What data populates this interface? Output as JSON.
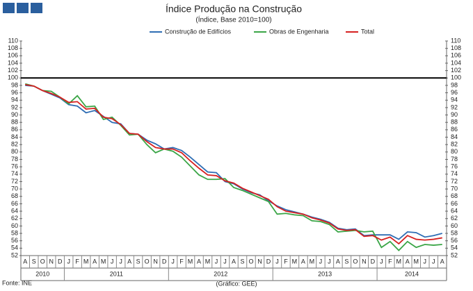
{
  "chart_data": {
    "type": "line",
    "title": "Índice Produção na Construção",
    "subtitle": "(Índice, Base 2010=100)",
    "categories": [
      "A",
      "S",
      "O",
      "N",
      "D",
      "J",
      "F",
      "M",
      "A",
      "M",
      "J",
      "J",
      "A",
      "S",
      "O",
      "N",
      "D",
      "J",
      "F",
      "M",
      "A",
      "M",
      "J",
      "J",
      "A",
      "S",
      "O",
      "N",
      "D",
      "J",
      "F",
      "M",
      "A",
      "M",
      "J",
      "J",
      "A",
      "S",
      "O",
      "N",
      "D",
      "J",
      "F",
      "M",
      "A",
      "M",
      "J",
      "J",
      "A"
    ],
    "years": [
      "2010",
      "2011",
      "2012",
      "2013",
      "2014"
    ],
    "series": [
      {
        "name": "Construção de Edifícios",
        "color": "#2e6db4",
        "values": [
          98,
          97.8,
          96.6,
          95.6,
          94.6,
          92.8,
          92.4,
          90.6,
          91.2,
          89.6,
          88,
          87.6,
          85,
          84.8,
          83.2,
          82.2,
          80.8,
          81.2,
          80.4,
          78.6,
          76.6,
          74.6,
          74.4,
          72,
          71.4,
          70,
          69,
          68.4,
          66.8,
          65.4,
          64.4,
          63.8,
          63.2,
          62.4,
          61.8,
          61,
          59.4,
          59,
          59.2,
          57.4,
          57.6,
          57.6,
          57.6,
          56.4,
          58.4,
          58.2,
          57,
          57.4,
          58
        ]
      },
      {
        "name": "Obras de Engenharia",
        "color": "#3aa546",
        "values": [
          98.4,
          97.8,
          96.6,
          96.4,
          94.8,
          93,
          95.2,
          92.2,
          92.4,
          88.8,
          89.4,
          87.2,
          84.6,
          84.8,
          82,
          79.8,
          80.8,
          80.2,
          78.6,
          76.2,
          73.8,
          72.6,
          72.6,
          72.8,
          70.4,
          69.6,
          68.6,
          67.6,
          66.6,
          63.2,
          63.4,
          63,
          62.8,
          61.4,
          61.2,
          60.4,
          58.4,
          58.6,
          58.8,
          58.4,
          58.6,
          54.2,
          55.8,
          53.4,
          55.8,
          54.2,
          55,
          54.8,
          55
        ]
      },
      {
        "name": "Total",
        "color": "#d62020",
        "values": [
          98.2,
          97.8,
          96.6,
          95.8,
          94.8,
          93.4,
          93.6,
          91.6,
          91.8,
          89.4,
          89,
          87.4,
          85,
          84.8,
          82.8,
          81.2,
          80.8,
          80.8,
          79.8,
          77.6,
          75.6,
          73.8,
          73.6,
          72.2,
          71.6,
          70.2,
          69.2,
          68.2,
          67.2,
          65.2,
          64,
          63.6,
          63.2,
          62.2,
          61.6,
          60.8,
          59.2,
          58.8,
          59,
          57.2,
          57.4,
          56.2,
          57,
          55.2,
          57.4,
          56.4,
          56.2,
          56.4,
          56.8
        ]
      }
    ],
    "reference_line": 100,
    "ylim": [
      52,
      110
    ],
    "yticks": [
      52,
      54,
      56,
      58,
      60,
      62,
      64,
      66,
      68,
      70,
      72,
      74,
      76,
      78,
      80,
      82,
      84,
      86,
      88,
      90,
      92,
      94,
      96,
      98,
      100,
      102,
      104,
      106,
      108,
      110
    ],
    "y2lim": [
      52,
      110
    ],
    "y2ticks": [
      52,
      54,
      56,
      58,
      60,
      62,
      64,
      66,
      68,
      70,
      72,
      74,
      76,
      78,
      80,
      82,
      84,
      86,
      88,
      90,
      92,
      94,
      96,
      98,
      100,
      102,
      104,
      106,
      108,
      110
    ],
    "legend": "top",
    "source": "Fonte: INE",
    "credit": "(Gráfico: GEE)"
  }
}
